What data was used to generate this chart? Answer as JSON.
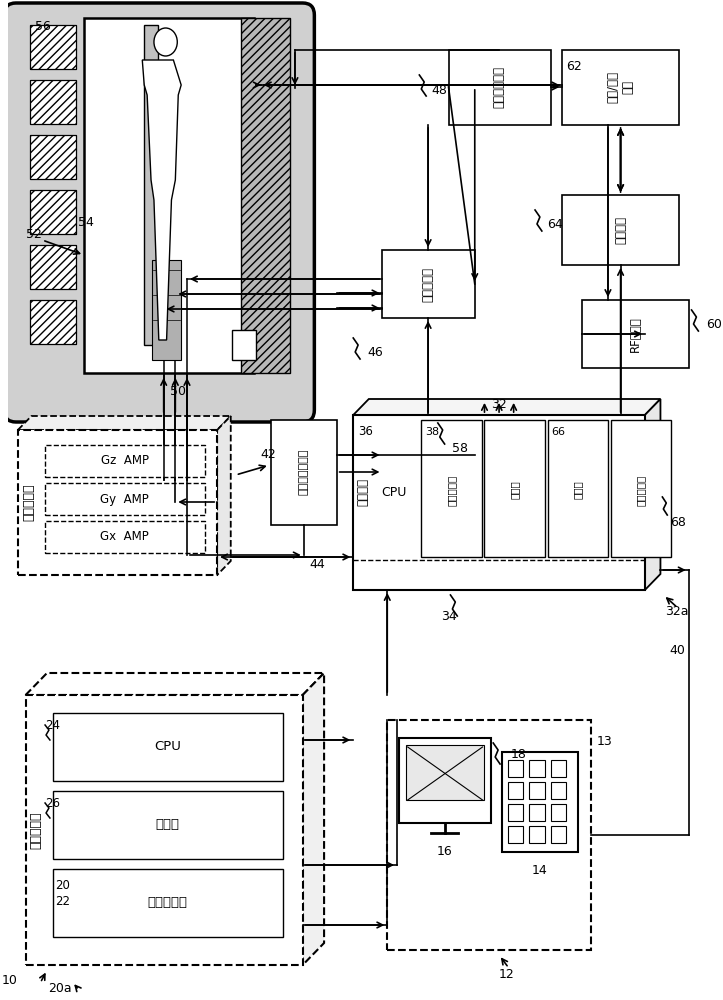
{
  "bg": "#ffffff",
  "lc": "#000000",
  "lw": 1.3,
  "components": {
    "num56": "56",
    "num52": "52",
    "num54": "54",
    "num50": "50",
    "num42": "42",
    "num44": "44",
    "gz": "Gz  AMP",
    "gy": "Gy  AMP",
    "gx": "Gx  AMP",
    "grad_lbl": "梯度放大器",
    "pac_lbl": "生理获取控制器",
    "si_lbl": "扫描室接口",
    "num46": "46",
    "pp_lbl": "患者定位系统",
    "num48": "48",
    "tr_lbl": "传送/接收\n开关",
    "num62": "62",
    "pre_lbl": "预放大器",
    "num64": "64",
    "rf_lbl": "RF放大器",
    "num60": "60",
    "sc_lbl": "系统控制",
    "num32": "32",
    "num32a": "32a",
    "cpu_lbl": "CPU",
    "num36": "36",
    "pg_lbl": "脉冲发生器",
    "num38": "38",
    "xcvr_lbl": "收发器",
    "mem_lbl": "存储器",
    "num66": "66",
    "arr_lbl": "阵列处理器",
    "num68": "68",
    "num58": "58",
    "comp_lbl": "计算机系统",
    "num10": "10",
    "num20a": "20a",
    "cpu2_lbl": "CPU",
    "num24": "24",
    "mem2_lbl": "存储器",
    "num26": "26",
    "img_lbl": "图像处理器",
    "num20": "20",
    "num22": "22",
    "num34": "34",
    "num12": "12",
    "num13": "13",
    "num16": "16",
    "num14": "14",
    "num18": "18",
    "num40": "40"
  }
}
